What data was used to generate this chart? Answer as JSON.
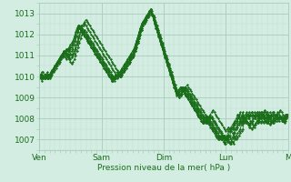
{
  "title": "",
  "xlabel": "Pression niveau de la mer( hPa )",
  "bg_color": "#d4ede3",
  "grid_minor_color": "#c0ddd0",
  "grid_major_color": "#a8ccba",
  "line_color": "#1a6e1a",
  "marker_color": "#1a6e1a",
  "ylim": [
    1006.5,
    1013.5
  ],
  "yticks": [
    1007,
    1008,
    1009,
    1010,
    1011,
    1012,
    1013
  ],
  "day_labels": [
    "Ven",
    "Sam",
    "Dim",
    "Lun",
    "M"
  ],
  "day_positions": [
    0,
    48,
    96,
    144,
    192
  ],
  "total_points": 193,
  "lines": [
    [
      1010.0,
      1010.1,
      1010.2,
      1010.2,
      1010.1,
      1010.0,
      1010.0,
      1009.9,
      1010.0,
      1010.1,
      1010.2,
      1010.3,
      1010.4,
      1010.5,
      1010.6,
      1010.7,
      1010.8,
      1010.9,
      1011.0,
      1011.1,
      1011.2,
      1011.3,
      1011.3,
      1011.2,
      1011.1,
      1011.0,
      1011.1,
      1011.2,
      1011.4,
      1011.6,
      1011.8,
      1012.0,
      1012.2,
      1012.4,
      1012.5,
      1012.6,
      1012.7,
      1012.6,
      1012.5,
      1012.4,
      1012.3,
      1012.2,
      1012.1,
      1012.0,
      1011.9,
      1011.8,
      1011.7,
      1011.6,
      1011.5,
      1011.4,
      1011.3,
      1011.2,
      1011.1,
      1011.0,
      1010.9,
      1010.8,
      1010.7,
      1010.6,
      1010.5,
      1010.4,
      1010.3,
      1010.2,
      1010.1,
      1010.0,
      1010.1,
      1010.2,
      1010.3,
      1010.4,
      1010.5,
      1010.6,
      1010.7,
      1010.8,
      1010.9,
      1011.0,
      1011.2,
      1011.4,
      1011.6,
      1011.8,
      1012.0,
      1012.2,
      1012.4,
      1012.6,
      1012.7,
      1012.8,
      1012.9,
      1013.0,
      1013.1,
      1013.0,
      1012.9,
      1012.8,
      1012.6,
      1012.4,
      1012.2,
      1012.0,
      1011.8,
      1011.6,
      1011.4,
      1011.2,
      1011.0,
      1010.8,
      1010.6,
      1010.4,
      1010.2,
      1010.0,
      1009.8,
      1009.6,
      1009.4,
      1009.2,
      1009.0,
      1009.1,
      1009.2,
      1009.3,
      1009.4,
      1009.5,
      1009.6,
      1009.5,
      1009.4,
      1009.3,
      1009.2,
      1009.1,
      1009.0,
      1008.9,
      1008.8,
      1008.7,
      1008.6,
      1008.5,
      1008.4,
      1008.3,
      1008.2,
      1008.1,
      1008.0,
      1008.1,
      1008.2,
      1008.3,
      1008.4,
      1008.3,
      1008.2,
      1008.1,
      1008.0,
      1007.9,
      1007.8,
      1007.7,
      1007.6,
      1007.5,
      1007.4,
      1007.5,
      1007.6,
      1007.5,
      1007.4,
      1007.3,
      1007.2,
      1007.1,
      1007.0,
      1007.1,
      1007.2,
      1007.3,
      1007.4,
      1007.5,
      1007.8,
      1008.0,
      1008.2,
      1008.1,
      1008.0,
      1007.9,
      1007.8,
      1007.7,
      1007.6,
      1007.7,
      1007.8,
      1007.9,
      1008.0,
      1008.1,
      1008.2,
      1008.3,
      1008.4,
      1008.3,
      1008.2,
      1008.1,
      1008.0,
      1007.9,
      1007.8,
      1007.9,
      1008.0,
      1008.1,
      1008.2,
      1008.3,
      1008.4,
      1008.3,
      1008.2,
      1008.1,
      1008.0,
      1008.1,
      1008.2
    ],
    [
      1010.0,
      1010.0,
      1010.0,
      1010.0,
      1009.9,
      1009.9,
      1009.9,
      1009.9,
      1009.9,
      1010.0,
      1010.1,
      1010.2,
      1010.3,
      1010.4,
      1010.5,
      1010.6,
      1010.7,
      1010.8,
      1010.9,
      1011.0,
      1011.1,
      1011.0,
      1010.9,
      1010.8,
      1010.7,
      1010.6,
      1010.7,
      1010.8,
      1011.0,
      1011.2,
      1011.4,
      1011.6,
      1011.8,
      1012.0,
      1012.1,
      1012.2,
      1012.1,
      1012.0,
      1011.9,
      1011.8,
      1011.7,
      1011.6,
      1011.5,
      1011.4,
      1011.3,
      1011.2,
      1011.1,
      1011.0,
      1010.9,
      1010.8,
      1010.7,
      1010.6,
      1010.5,
      1010.4,
      1010.3,
      1010.2,
      1010.1,
      1010.0,
      1009.9,
      1009.9,
      1009.9,
      1010.0,
      1010.1,
      1010.0,
      1010.1,
      1010.2,
      1010.3,
      1010.4,
      1010.5,
      1010.6,
      1010.7,
      1010.8,
      1010.9,
      1011.0,
      1011.2,
      1011.4,
      1011.6,
      1011.8,
      1012.0,
      1012.2,
      1012.4,
      1012.5,
      1012.6,
      1012.7,
      1012.8,
      1012.9,
      1013.0,
      1012.9,
      1012.8,
      1012.7,
      1012.5,
      1012.3,
      1012.1,
      1011.9,
      1011.7,
      1011.5,
      1011.3,
      1011.1,
      1010.9,
      1010.7,
      1010.5,
      1010.3,
      1010.1,
      1009.9,
      1009.7,
      1009.5,
      1009.3,
      1009.1,
      1009.0,
      1009.1,
      1009.2,
      1009.3,
      1009.4,
      1009.5,
      1009.4,
      1009.3,
      1009.2,
      1009.1,
      1009.0,
      1008.9,
      1008.8,
      1008.7,
      1008.6,
      1008.5,
      1008.4,
      1008.3,
      1008.2,
      1008.1,
      1008.0,
      1007.9,
      1007.8,
      1007.9,
      1008.0,
      1008.1,
      1008.0,
      1007.9,
      1007.8,
      1007.7,
      1007.6,
      1007.5,
      1007.4,
      1007.3,
      1007.2,
      1007.1,
      1007.0,
      1007.1,
      1007.2,
      1007.1,
      1007.0,
      1006.9,
      1006.8,
      1007.0,
      1007.2,
      1007.3,
      1007.4,
      1007.5,
      1007.7,
      1007.9,
      1008.1,
      1008.0,
      1007.9,
      1007.8,
      1007.7,
      1007.6,
      1007.5,
      1007.6,
      1007.7,
      1007.8,
      1007.9,
      1008.0,
      1008.1,
      1008.2,
      1008.3,
      1008.2,
      1008.1,
      1008.0,
      1007.9,
      1007.8,
      1007.7,
      1007.8,
      1007.9,
      1008.0,
      1008.1,
      1008.2,
      1008.3,
      1008.2,
      1008.1,
      1008.0,
      1007.9,
      1007.8,
      1007.9,
      1008.0,
      1008.1
    ],
    [
      1010.0,
      1009.9,
      1009.8,
      1009.9,
      1010.0,
      1010.1,
      1010.2,
      1010.1,
      1010.0,
      1010.1,
      1010.2,
      1010.3,
      1010.4,
      1010.5,
      1010.6,
      1010.7,
      1010.8,
      1010.9,
      1011.0,
      1011.1,
      1011.2,
      1011.1,
      1011.0,
      1010.9,
      1010.8,
      1010.9,
      1011.0,
      1011.1,
      1011.3,
      1011.5,
      1011.7,
      1011.9,
      1012.1,
      1012.3,
      1012.4,
      1012.5,
      1012.4,
      1012.3,
      1012.2,
      1012.1,
      1012.0,
      1011.9,
      1011.8,
      1011.7,
      1011.6,
      1011.5,
      1011.4,
      1011.3,
      1011.2,
      1011.1,
      1011.0,
      1010.9,
      1010.8,
      1010.7,
      1010.6,
      1010.5,
      1010.4,
      1010.3,
      1010.2,
      1010.1,
      1010.0,
      1010.1,
      1010.0,
      1010.1,
      1010.2,
      1010.3,
      1010.4,
      1010.5,
      1010.6,
      1010.7,
      1010.8,
      1010.9,
      1011.0,
      1011.1,
      1011.3,
      1011.5,
      1011.7,
      1011.9,
      1012.1,
      1012.3,
      1012.5,
      1012.6,
      1012.7,
      1012.8,
      1012.9,
      1013.0,
      1013.1,
      1013.0,
      1012.9,
      1012.7,
      1012.5,
      1012.3,
      1012.1,
      1011.9,
      1011.7,
      1011.5,
      1011.3,
      1011.1,
      1010.9,
      1010.7,
      1010.5,
      1010.3,
      1010.1,
      1009.9,
      1009.7,
      1009.5,
      1009.3,
      1009.2,
      1009.1,
      1009.2,
      1009.3,
      1009.4,
      1009.5,
      1009.4,
      1009.3,
      1009.2,
      1009.1,
      1009.0,
      1008.9,
      1008.8,
      1008.7,
      1008.6,
      1008.5,
      1008.4,
      1008.3,
      1008.2,
      1008.1,
      1008.0,
      1007.9,
      1007.8,
      1007.9,
      1008.0,
      1008.1,
      1008.0,
      1007.9,
      1007.8,
      1007.7,
      1007.6,
      1007.5,
      1007.4,
      1007.3,
      1007.2,
      1007.1,
      1007.0,
      1007.1,
      1007.2,
      1007.0,
      1006.9,
      1006.8,
      1006.9,
      1007.1,
      1007.3,
      1007.5,
      1007.6,
      1007.7,
      1007.8,
      1008.0,
      1008.2,
      1008.0,
      1007.9,
      1007.8,
      1007.7,
      1007.6,
      1007.7,
      1007.8,
      1007.9,
      1008.0,
      1008.1,
      1008.2,
      1008.1,
      1008.2,
      1008.3,
      1008.2,
      1008.1,
      1008.0,
      1007.9,
      1007.8,
      1007.9,
      1008.0,
      1008.1,
      1008.2,
      1008.3,
      1008.2,
      1008.1,
      1008.0,
      1007.9,
      1008.0,
      1008.1,
      1008.0,
      1007.9,
      1008.0,
      1008.1,
      1008.2
    ],
    [
      1009.9,
      1010.0,
      1010.1,
      1010.0,
      1009.9,
      1010.0,
      1010.1,
      1010.0,
      1010.1,
      1010.2,
      1010.3,
      1010.4,
      1010.5,
      1010.6,
      1010.7,
      1010.8,
      1010.9,
      1011.0,
      1011.1,
      1011.0,
      1010.9,
      1010.8,
      1010.9,
      1011.0,
      1011.1,
      1011.2,
      1011.3,
      1011.5,
      1011.7,
      1011.9,
      1012.1,
      1012.3,
      1012.4,
      1012.3,
      1012.2,
      1012.1,
      1012.0,
      1011.9,
      1011.8,
      1011.7,
      1011.6,
      1011.5,
      1011.4,
      1011.3,
      1011.2,
      1011.1,
      1011.0,
      1010.9,
      1010.8,
      1010.7,
      1010.6,
      1010.5,
      1010.4,
      1010.3,
      1010.2,
      1010.1,
      1010.0,
      1009.9,
      1009.8,
      1009.9,
      1010.0,
      1010.1,
      1010.0,
      1010.1,
      1010.2,
      1010.3,
      1010.4,
      1010.5,
      1010.6,
      1010.7,
      1010.8,
      1010.9,
      1011.0,
      1011.1,
      1011.3,
      1011.5,
      1011.7,
      1011.9,
      1012.1,
      1012.3,
      1012.5,
      1012.6,
      1012.7,
      1012.8,
      1012.9,
      1013.0,
      1013.1,
      1013.0,
      1012.8,
      1012.6,
      1012.4,
      1012.2,
      1012.0,
      1011.8,
      1011.6,
      1011.4,
      1011.2,
      1011.0,
      1010.8,
      1010.6,
      1010.4,
      1010.2,
      1010.0,
      1009.8,
      1009.6,
      1009.4,
      1009.2,
      1009.1,
      1009.2,
      1009.3,
      1009.4,
      1009.5,
      1009.4,
      1009.3,
      1009.2,
      1009.1,
      1009.0,
      1008.9,
      1008.8,
      1008.7,
      1008.6,
      1008.5,
      1008.4,
      1008.3,
      1008.2,
      1008.1,
      1008.0,
      1007.9,
      1007.8,
      1007.9,
      1008.0,
      1008.1,
      1007.9,
      1007.8,
      1007.7,
      1007.6,
      1007.5,
      1007.4,
      1007.3,
      1007.2,
      1007.1,
      1007.0,
      1007.1,
      1007.2,
      1007.1,
      1007.0,
      1006.9,
      1006.8,
      1006.9,
      1007.1,
      1007.3,
      1007.5,
      1007.6,
      1007.7,
      1007.8,
      1007.9,
      1008.1,
      1008.3,
      1008.1,
      1008.0,
      1007.9,
      1007.8,
      1007.7,
      1007.8,
      1007.9,
      1008.0,
      1008.1,
      1008.2,
      1008.3,
      1008.2,
      1008.3,
      1008.2,
      1008.1,
      1008.0,
      1007.9,
      1007.8,
      1007.9,
      1008.0,
      1008.1,
      1008.2,
      1008.3,
      1008.2,
      1008.1,
      1008.0,
      1007.9,
      1008.0,
      1008.1,
      1008.0,
      1007.9,
      1008.0,
      1008.1,
      1008.2,
      1008.1
    ],
    [
      1009.9,
      1010.0,
      1010.1,
      1010.0,
      1009.9,
      1010.0,
      1010.1,
      1010.0,
      1010.1,
      1010.2,
      1010.3,
      1010.4,
      1010.5,
      1010.6,
      1010.7,
      1010.8,
      1010.9,
      1011.0,
      1011.1,
      1011.2,
      1011.1,
      1011.0,
      1011.1,
      1011.2,
      1011.3,
      1011.4,
      1011.5,
      1011.7,
      1011.9,
      1012.1,
      1012.3,
      1012.4,
      1012.3,
      1012.2,
      1012.1,
      1012.0,
      1011.9,
      1011.8,
      1011.7,
      1011.6,
      1011.5,
      1011.4,
      1011.3,
      1011.2,
      1011.1,
      1011.0,
      1010.9,
      1010.8,
      1010.7,
      1010.6,
      1010.5,
      1010.4,
      1010.3,
      1010.2,
      1010.1,
      1010.0,
      1009.9,
      1009.8,
      1009.9,
      1010.0,
      1010.1,
      1010.0,
      1010.1,
      1010.2,
      1010.3,
      1010.4,
      1010.5,
      1010.6,
      1010.7,
      1010.8,
      1010.9,
      1011.0,
      1011.1,
      1011.2,
      1011.4,
      1011.6,
      1011.8,
      1012.0,
      1012.2,
      1012.4,
      1012.5,
      1012.6,
      1012.7,
      1012.8,
      1012.9,
      1013.0,
      1013.1,
      1013.0,
      1012.7,
      1012.5,
      1012.3,
      1012.1,
      1011.9,
      1011.7,
      1011.5,
      1011.3,
      1011.1,
      1010.9,
      1010.7,
      1010.5,
      1010.3,
      1010.1,
      1009.9,
      1009.7,
      1009.5,
      1009.3,
      1009.1,
      1009.2,
      1009.3,
      1009.4,
      1009.5,
      1009.4,
      1009.3,
      1009.2,
      1009.1,
      1009.0,
      1008.9,
      1008.8,
      1008.7,
      1008.6,
      1008.5,
      1008.4,
      1008.3,
      1008.2,
      1008.1,
      1008.0,
      1007.9,
      1007.8,
      1007.9,
      1008.0,
      1008.1,
      1007.9,
      1007.8,
      1007.7,
      1007.6,
      1007.5,
      1007.4,
      1007.3,
      1007.2,
      1007.1,
      1007.0,
      1007.1,
      1007.2,
      1007.1,
      1007.0,
      1006.9,
      1007.0,
      1007.2,
      1007.4,
      1007.5,
      1007.6,
      1007.7,
      1007.8,
      1007.9,
      1008.1,
      1008.3,
      1008.1,
      1008.0,
      1007.9,
      1007.8,
      1007.9,
      1008.0,
      1008.1,
      1008.2,
      1008.3,
      1008.2,
      1008.1,
      1008.2,
      1008.3,
      1008.2,
      1008.1,
      1008.0,
      1007.9,
      1007.8,
      1007.9,
      1008.0,
      1008.1,
      1008.2,
      1008.3,
      1008.2,
      1008.1,
      1008.0,
      1007.9,
      1008.0,
      1008.1,
      1008.0,
      1008.1,
      1008.0,
      1007.9,
      1008.0,
      1008.1,
      1008.2,
      1008.1
    ],
    [
      1010.0,
      1010.1,
      1010.0,
      1009.9,
      1010.0,
      1010.1,
      1010.0,
      1009.9,
      1010.0,
      1010.1,
      1010.2,
      1010.3,
      1010.4,
      1010.5,
      1010.6,
      1010.7,
      1010.8,
      1010.9,
      1011.0,
      1011.1,
      1011.2,
      1011.3,
      1011.2,
      1011.3,
      1011.4,
      1011.5,
      1011.6,
      1011.8,
      1012.0,
      1012.2,
      1012.4,
      1012.3,
      1012.2,
      1012.1,
      1012.0,
      1011.9,
      1011.8,
      1011.7,
      1011.6,
      1011.5,
      1011.4,
      1011.3,
      1011.2,
      1011.1,
      1011.0,
      1010.9,
      1010.8,
      1010.7,
      1010.6,
      1010.5,
      1010.4,
      1010.3,
      1010.2,
      1010.1,
      1010.0,
      1009.9,
      1009.8,
      1009.9,
      1010.0,
      1010.1,
      1010.0,
      1010.1,
      1010.2,
      1010.3,
      1010.4,
      1010.5,
      1010.6,
      1010.7,
      1010.8,
      1010.9,
      1011.0,
      1011.1,
      1011.2,
      1011.3,
      1011.5,
      1011.7,
      1011.9,
      1012.1,
      1012.3,
      1012.5,
      1012.6,
      1012.7,
      1012.8,
      1012.9,
      1013.0,
      1013.1,
      1013.2,
      1013.1,
      1012.8,
      1012.6,
      1012.4,
      1012.2,
      1012.0,
      1011.8,
      1011.6,
      1011.4,
      1011.2,
      1011.0,
      1010.8,
      1010.6,
      1010.4,
      1010.2,
      1010.0,
      1009.8,
      1009.6,
      1009.4,
      1009.2,
      1009.3,
      1009.4,
      1009.5,
      1009.4,
      1009.3,
      1009.2,
      1009.1,
      1009.0,
      1008.9,
      1008.8,
      1008.7,
      1008.6,
      1008.5,
      1008.4,
      1008.3,
      1008.2,
      1008.1,
      1008.0,
      1007.9,
      1007.8,
      1007.9,
      1008.0,
      1008.1,
      1007.9,
      1007.8,
      1007.7,
      1007.6,
      1007.5,
      1007.4,
      1007.3,
      1007.2,
      1007.1,
      1007.0,
      1007.1,
      1007.2,
      1007.0,
      1006.9,
      1006.8,
      1007.0,
      1007.2,
      1007.4,
      1007.5,
      1007.6,
      1007.7,
      1007.8,
      1007.9,
      1008.0,
      1008.2,
      1008.0,
      1007.9,
      1007.8,
      1007.9,
      1008.0,
      1008.1,
      1008.2,
      1008.3,
      1008.2,
      1008.1,
      1008.2,
      1008.3,
      1008.2,
      1008.1,
      1008.0,
      1007.9,
      1007.8,
      1007.9,
      1008.0,
      1008.1,
      1008.2,
      1008.3,
      1008.2,
      1008.1,
      1008.0,
      1007.9,
      1007.8,
      1007.9,
      1008.0,
      1008.1,
      1008.0,
      1008.1,
      1008.0,
      1007.9,
      1008.0,
      1008.1,
      1008.2,
      1008.1
    ],
    [
      1010.0,
      1010.1,
      1010.0,
      1009.9,
      1010.0,
      1010.1,
      1009.9,
      1010.0,
      1010.1,
      1010.2,
      1010.3,
      1010.4,
      1010.5,
      1010.6,
      1010.7,
      1010.8,
      1010.9,
      1011.0,
      1011.1,
      1011.2,
      1011.1,
      1011.2,
      1011.3,
      1011.4,
      1011.5,
      1011.6,
      1011.7,
      1011.9,
      1012.1,
      1012.3,
      1012.4,
      1012.3,
      1012.2,
      1012.1,
      1012.0,
      1011.9,
      1011.8,
      1011.7,
      1011.6,
      1011.5,
      1011.4,
      1011.3,
      1011.2,
      1011.1,
      1011.0,
      1010.9,
      1010.8,
      1010.7,
      1010.6,
      1010.5,
      1010.4,
      1010.3,
      1010.2,
      1010.1,
      1010.0,
      1009.9,
      1009.8,
      1009.9,
      1010.0,
      1010.1,
      1010.2,
      1010.1,
      1010.2,
      1010.3,
      1010.4,
      1010.5,
      1010.6,
      1010.7,
      1010.8,
      1010.9,
      1011.0,
      1011.1,
      1011.2,
      1011.3,
      1011.5,
      1011.7,
      1011.9,
      1012.1,
      1012.3,
      1012.5,
      1012.6,
      1012.7,
      1012.8,
      1012.9,
      1013.0,
      1013.1,
      1013.2,
      1013.0,
      1012.8,
      1012.5,
      1012.3,
      1012.1,
      1011.9,
      1011.7,
      1011.5,
      1011.3,
      1011.1,
      1010.9,
      1010.7,
      1010.5,
      1010.3,
      1010.1,
      1009.9,
      1009.7,
      1009.5,
      1009.3,
      1009.2,
      1009.3,
      1009.4,
      1009.5,
      1009.4,
      1009.3,
      1009.2,
      1009.1,
      1009.0,
      1008.9,
      1008.8,
      1008.7,
      1008.6,
      1008.5,
      1008.4,
      1008.3,
      1008.2,
      1008.1,
      1008.0,
      1007.9,
      1007.8,
      1008.0,
      1008.1,
      1007.9,
      1007.8,
      1007.7,
      1007.6,
      1007.5,
      1007.4,
      1007.3,
      1007.2,
      1007.1,
      1007.0,
      1007.1,
      1007.2,
      1007.0,
      1006.9,
      1006.8,
      1007.0,
      1007.2,
      1007.4,
      1007.5,
      1007.6,
      1007.7,
      1007.8,
      1007.9,
      1008.0,
      1008.2,
      1008.0,
      1007.9,
      1007.8,
      1008.0,
      1008.1,
      1008.2,
      1008.3,
      1008.2,
      1008.1,
      1008.2,
      1008.3,
      1008.2,
      1008.1,
      1008.0,
      1007.9,
      1007.8,
      1007.9,
      1008.0,
      1008.1,
      1008.2,
      1008.3,
      1008.2,
      1008.1,
      1008.0,
      1007.9,
      1007.8,
      1007.9,
      1008.0,
      1008.1,
      1008.0,
      1008.1,
      1008.0,
      1008.1,
      1007.9,
      1008.0,
      1008.1,
      1008.2,
      1008.1,
      1008.2
    ]
  ]
}
